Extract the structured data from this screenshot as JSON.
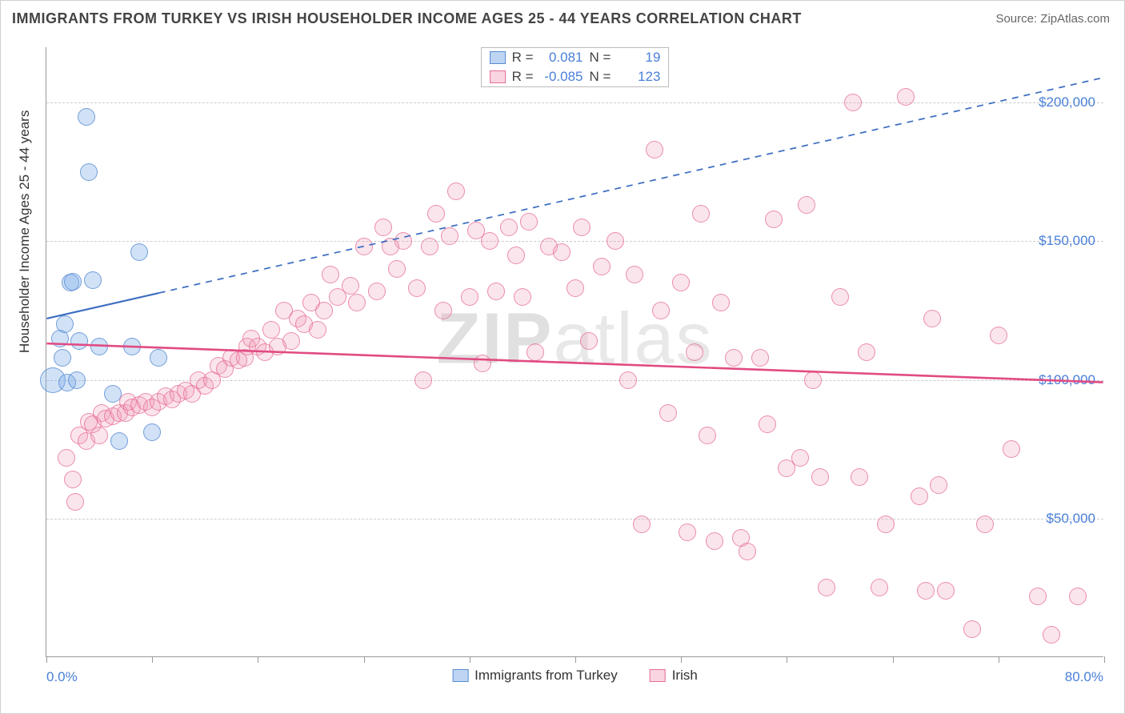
{
  "title": "IMMIGRANTS FROM TURKEY VS IRISH HOUSEHOLDER INCOME AGES 25 - 44 YEARS CORRELATION CHART",
  "source": "Source: ZipAtlas.com",
  "watermark": "ZIPatlas",
  "chart": {
    "type": "scatter",
    "ylabel": "Householder Income Ages 25 - 44 years",
    "x_min": 0.0,
    "x_max": 80.0,
    "x_min_label": "0.0%",
    "x_max_label": "80.0%",
    "y_min": 0,
    "y_max": 220000,
    "y_gridlines": [
      50000,
      100000,
      150000,
      200000
    ],
    "y_tick_labels": [
      "$50,000",
      "$100,000",
      "$150,000",
      "$200,000"
    ],
    "x_tick_positions": [
      0,
      8,
      16,
      24,
      32,
      40,
      48,
      56,
      64,
      72,
      80
    ],
    "background_color": "#ffffff",
    "grid_color": "#cccccc",
    "axis_color": "#999999",
    "tick_label_color": "#4a7fd8",
    "marker_radius": 11,
    "marker_radius_large": 16,
    "series": [
      {
        "name": "Immigrants from Turkey",
        "color_fill": "rgba(124,172,232,0.35)",
        "color_stroke": "#5a8cd2",
        "css": "pt-blue",
        "R": "0.081",
        "N": "19",
        "trend": {
          "x1": 0,
          "y1": 122000,
          "x2": 8.5,
          "y2": 131000,
          "solid_until_x": 8.5,
          "dash_to_x": 80,
          "dash_to_y": 209000,
          "color": "#3e6fc1",
          "width": 2.2
        },
        "points": [
          {
            "x": 0.5,
            "y": 100000,
            "r": 16
          },
          {
            "x": 1.0,
            "y": 115000
          },
          {
            "x": 1.2,
            "y": 108000
          },
          {
            "x": 1.4,
            "y": 120000
          },
          {
            "x": 1.6,
            "y": 99000
          },
          {
            "x": 1.8,
            "y": 135000
          },
          {
            "x": 2.0,
            "y": 135500
          },
          {
            "x": 2.3,
            "y": 100000
          },
          {
            "x": 2.5,
            "y": 114000
          },
          {
            "x": 3.0,
            "y": 195000
          },
          {
            "x": 3.2,
            "y": 175000
          },
          {
            "x": 3.5,
            "y": 136000
          },
          {
            "x": 4.0,
            "y": 112000
          },
          {
            "x": 5.0,
            "y": 95000
          },
          {
            "x": 5.5,
            "y": 78000
          },
          {
            "x": 6.5,
            "y": 112000
          },
          {
            "x": 7.0,
            "y": 146000
          },
          {
            "x": 8.0,
            "y": 81000
          },
          {
            "x": 8.5,
            "y": 108000
          }
        ]
      },
      {
        "name": "Irish",
        "color_fill": "rgba(240,150,180,0.25)",
        "color_stroke": "#e66e96",
        "css": "pt-pink",
        "R": "-0.085",
        "N": "123",
        "trend": {
          "x1": 0,
          "y1": 113000,
          "x2": 80,
          "y2": 99000,
          "solid_until_x": 80,
          "color": "#e14b82",
          "width": 2.6
        },
        "points": [
          {
            "x": 1.5,
            "y": 72000
          },
          {
            "x": 2.0,
            "y": 64000
          },
          {
            "x": 2.2,
            "y": 56000
          },
          {
            "x": 2.5,
            "y": 80000
          },
          {
            "x": 3.0,
            "y": 78000
          },
          {
            "x": 3.2,
            "y": 85000
          },
          {
            "x": 3.5,
            "y": 84000
          },
          {
            "x": 4.0,
            "y": 80000
          },
          {
            "x": 4.2,
            "y": 88000
          },
          {
            "x": 4.5,
            "y": 86000
          },
          {
            "x": 5.0,
            "y": 87000
          },
          {
            "x": 5.5,
            "y": 88000
          },
          {
            "x": 6.0,
            "y": 88000
          },
          {
            "x": 6.2,
            "y": 92000
          },
          {
            "x": 6.5,
            "y": 90000
          },
          {
            "x": 7.0,
            "y": 91000
          },
          {
            "x": 7.5,
            "y": 92000
          },
          {
            "x": 8.0,
            "y": 90000
          },
          {
            "x": 8.5,
            "y": 92000
          },
          {
            "x": 9.0,
            "y": 94000
          },
          {
            "x": 9.5,
            "y": 93000
          },
          {
            "x": 10.0,
            "y": 95000
          },
          {
            "x": 10.5,
            "y": 96000
          },
          {
            "x": 11.0,
            "y": 95000
          },
          {
            "x": 11.5,
            "y": 100000
          },
          {
            "x": 12.0,
            "y": 98000
          },
          {
            "x": 12.5,
            "y": 100000
          },
          {
            "x": 13.0,
            "y": 105000
          },
          {
            "x": 13.5,
            "y": 104000
          },
          {
            "x": 14.0,
            "y": 108000
          },
          {
            "x": 14.5,
            "y": 107000
          },
          {
            "x": 15.0,
            "y": 108000
          },
          {
            "x": 15.2,
            "y": 112000
          },
          {
            "x": 15.5,
            "y": 115000
          },
          {
            "x": 16.0,
            "y": 112000
          },
          {
            "x": 16.5,
            "y": 110000
          },
          {
            "x": 17.0,
            "y": 118000
          },
          {
            "x": 17.5,
            "y": 112000
          },
          {
            "x": 18.0,
            "y": 125000
          },
          {
            "x": 18.5,
            "y": 114000
          },
          {
            "x": 19.0,
            "y": 122000
          },
          {
            "x": 19.5,
            "y": 120000
          },
          {
            "x": 20.0,
            "y": 128000
          },
          {
            "x": 20.5,
            "y": 118000
          },
          {
            "x": 21.0,
            "y": 125000
          },
          {
            "x": 21.5,
            "y": 138000
          },
          {
            "x": 22.0,
            "y": 130000
          },
          {
            "x": 23.0,
            "y": 134000
          },
          {
            "x": 23.5,
            "y": 128000
          },
          {
            "x": 24.0,
            "y": 148000
          },
          {
            "x": 25.0,
            "y": 132000
          },
          {
            "x": 25.5,
            "y": 155000
          },
          {
            "x": 26.0,
            "y": 148000
          },
          {
            "x": 26.5,
            "y": 140000
          },
          {
            "x": 27.0,
            "y": 150000
          },
          {
            "x": 28.0,
            "y": 133000
          },
          {
            "x": 28.5,
            "y": 100000
          },
          {
            "x": 29.0,
            "y": 148000
          },
          {
            "x": 29.5,
            "y": 160000
          },
          {
            "x": 30.0,
            "y": 125000
          },
          {
            "x": 30.5,
            "y": 152000
          },
          {
            "x": 31.0,
            "y": 168000
          },
          {
            "x": 32.0,
            "y": 130000
          },
          {
            "x": 32.5,
            "y": 154000
          },
          {
            "x": 33.0,
            "y": 106000
          },
          {
            "x": 33.5,
            "y": 150000
          },
          {
            "x": 34.0,
            "y": 132000
          },
          {
            "x": 35.0,
            "y": 155000
          },
          {
            "x": 35.5,
            "y": 145000
          },
          {
            "x": 36.0,
            "y": 130000
          },
          {
            "x": 36.5,
            "y": 157000
          },
          {
            "x": 37.0,
            "y": 110000
          },
          {
            "x": 38.0,
            "y": 148000
          },
          {
            "x": 39.0,
            "y": 146000
          },
          {
            "x": 40.0,
            "y": 133000
          },
          {
            "x": 40.5,
            "y": 155000
          },
          {
            "x": 41.0,
            "y": 114000
          },
          {
            "x": 42.0,
            "y": 141000
          },
          {
            "x": 43.0,
            "y": 150000
          },
          {
            "x": 44.0,
            "y": 100000
          },
          {
            "x": 44.5,
            "y": 138000
          },
          {
            "x": 45.0,
            "y": 48000
          },
          {
            "x": 46.0,
            "y": 183000
          },
          {
            "x": 46.5,
            "y": 125000
          },
          {
            "x": 47.0,
            "y": 88000
          },
          {
            "x": 48.0,
            "y": 135000
          },
          {
            "x": 48.5,
            "y": 45000
          },
          {
            "x": 49.0,
            "y": 110000
          },
          {
            "x": 49.5,
            "y": 160000
          },
          {
            "x": 50.0,
            "y": 80000
          },
          {
            "x": 50.5,
            "y": 42000
          },
          {
            "x": 51.0,
            "y": 128000
          },
          {
            "x": 52.0,
            "y": 108000
          },
          {
            "x": 52.5,
            "y": 43000
          },
          {
            "x": 53.0,
            "y": 38000
          },
          {
            "x": 54.0,
            "y": 108000
          },
          {
            "x": 54.5,
            "y": 84000
          },
          {
            "x": 55.0,
            "y": 158000
          },
          {
            "x": 56.0,
            "y": 68000
          },
          {
            "x": 57.0,
            "y": 72000
          },
          {
            "x": 57.5,
            "y": 163000
          },
          {
            "x": 58.0,
            "y": 100000
          },
          {
            "x": 58.5,
            "y": 65000
          },
          {
            "x": 59.0,
            "y": 25000
          },
          {
            "x": 60.0,
            "y": 130000
          },
          {
            "x": 61.0,
            "y": 200000
          },
          {
            "x": 61.5,
            "y": 65000
          },
          {
            "x": 62.0,
            "y": 110000
          },
          {
            "x": 63.0,
            "y": 25000
          },
          {
            "x": 63.5,
            "y": 48000
          },
          {
            "x": 65.0,
            "y": 202000
          },
          {
            "x": 66.0,
            "y": 58000
          },
          {
            "x": 66.5,
            "y": 24000
          },
          {
            "x": 67.0,
            "y": 122000
          },
          {
            "x": 67.5,
            "y": 62000
          },
          {
            "x": 68.0,
            "y": 24000
          },
          {
            "x": 70.0,
            "y": 10000
          },
          {
            "x": 71.0,
            "y": 48000
          },
          {
            "x": 72.0,
            "y": 116000
          },
          {
            "x": 73.0,
            "y": 75000
          },
          {
            "x": 75.0,
            "y": 22000
          },
          {
            "x": 76.0,
            "y": 8000
          },
          {
            "x": 78.0,
            "y": 22000
          }
        ]
      }
    ]
  },
  "legend_labels": {
    "series1": "Immigrants from Turkey",
    "series2": "Irish",
    "R_label": "R =",
    "N_label": "N ="
  }
}
